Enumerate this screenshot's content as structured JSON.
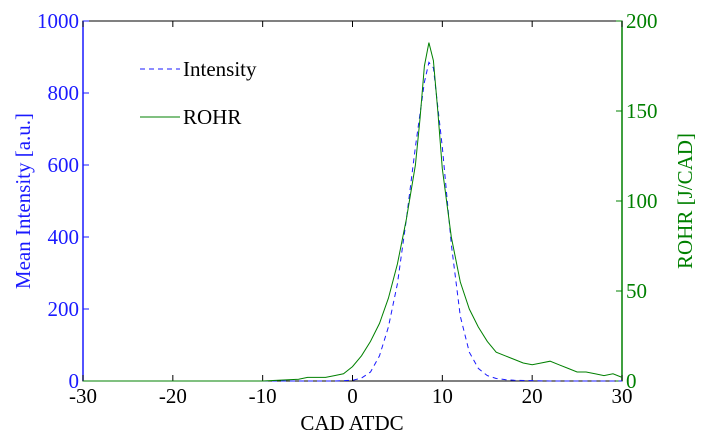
{
  "chart_data": {
    "type": "line",
    "xlabel": "CAD ATDC",
    "x_ticks": [
      "-30",
      "-20",
      "-10",
      "0",
      "10",
      "20",
      "30"
    ],
    "xlim": [
      -30,
      30
    ],
    "y_left": {
      "label": "Mean Intensity [a.u.]",
      "color": "#1a1aff",
      "lim": [
        0,
        1000
      ],
      "ticks": [
        "0",
        "200",
        "400",
        "600",
        "800",
        "1000"
      ]
    },
    "y_right": {
      "label": "ROHR [J/CAD]",
      "color": "#008000",
      "lim": [
        0,
        200
      ],
      "ticks": [
        "0",
        "50",
        "100",
        "150",
        "200"
      ]
    },
    "legend_position": "top-left",
    "grid": false,
    "series": [
      {
        "name": "Intensity",
        "axis": "left",
        "color": "#1a1aff",
        "style": "dashed",
        "x": [
          -30,
          -10,
          -2,
          0,
          1,
          2,
          3,
          4,
          5,
          6,
          7,
          8,
          8.5,
          9,
          10,
          11,
          12,
          13,
          14,
          15,
          16,
          17,
          18,
          20,
          22,
          25,
          30
        ],
        "y": [
          0,
          0,
          0,
          2,
          8,
          25,
          70,
          150,
          270,
          450,
          650,
          830,
          885,
          870,
          650,
          380,
          180,
          80,
          35,
          15,
          7,
          4,
          2,
          1,
          0,
          0,
          0
        ]
      },
      {
        "name": "ROHR",
        "axis": "right",
        "color": "#008000",
        "style": "solid",
        "x": [
          -30,
          -20,
          -10,
          -6,
          -5,
          -3,
          -2,
          -1,
          0,
          1,
          2,
          3,
          4,
          5,
          6,
          7,
          7.5,
          8,
          8.5,
          9,
          9.5,
          10,
          11,
          12,
          13,
          14,
          15,
          16,
          17,
          18,
          19,
          20,
          21,
          22,
          23,
          24,
          25,
          26,
          27,
          28,
          29,
          30
        ],
        "y": [
          0,
          0,
          0,
          1,
          2,
          2,
          3,
          4,
          8,
          14,
          22,
          32,
          46,
          65,
          90,
          120,
          145,
          175,
          188,
          178,
          150,
          118,
          80,
          55,
          40,
          30,
          22,
          16,
          14,
          12,
          10,
          9,
          10,
          11,
          9,
          7,
          5,
          5,
          4,
          3,
          4,
          2
        ]
      }
    ]
  }
}
